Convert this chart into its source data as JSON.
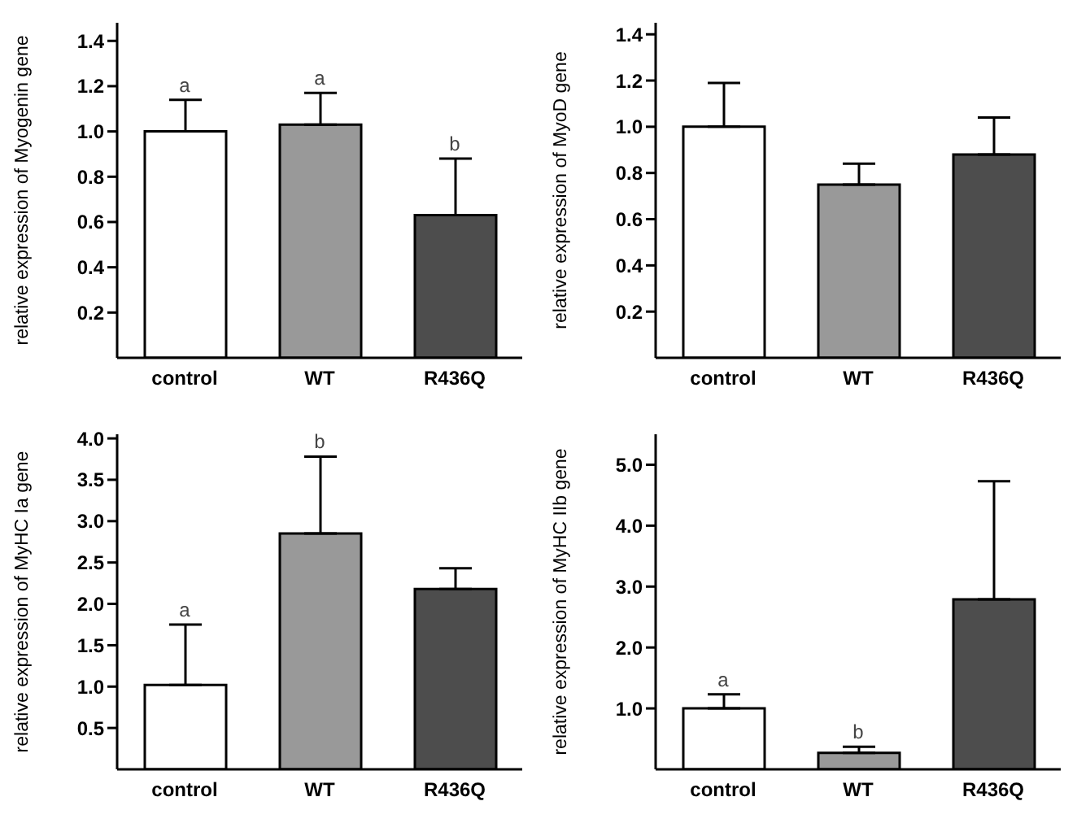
{
  "chart_data": [
    {
      "type": "bar",
      "ylabel": "relative expression of Myogenin gene",
      "categories": [
        "control",
        "WT",
        "R436Q"
      ],
      "values": [
        1.0,
        1.03,
        0.63
      ],
      "errors": [
        0.14,
        0.14,
        0.25
      ],
      "colors": [
        "#ffffff",
        "#999999",
        "#4d4d4d"
      ],
      "ylim": [
        0,
        1.48
      ],
      "yticks": [
        0.2,
        0.4,
        0.6,
        0.8,
        {
          "value": 1,
          "label": "1.0"
        },
        1.2,
        1.4
      ],
      "annotations": [
        {
          "text": "a",
          "x": "control",
          "y": 1.14
        },
        {
          "text": "a",
          "x": "WT",
          "y": 1.17
        },
        {
          "text": "b",
          "x": "R436Q",
          "y": 0.88
        }
      ],
      "grid": false,
      "legend": false
    },
    {
      "type": "bar",
      "ylabel": "relative expression of MyoD gene",
      "categories": [
        "control",
        "WT",
        "R436Q"
      ],
      "values": [
        1.0,
        0.75,
        0.88
      ],
      "errors": [
        0.19,
        0.09,
        0.16
      ],
      "colors": [
        "#ffffff",
        "#999999",
        "#4d4d4d"
      ],
      "ylim": [
        0,
        1.45
      ],
      "yticks": [
        0.2,
        0.4,
        0.6,
        0.8,
        {
          "value": 1,
          "label": "1.0"
        },
        1.2,
        1.4
      ],
      "grid": false,
      "legend": false
    },
    {
      "type": "bar",
      "ylabel": "relative expression of MyHC Ia gene",
      "categories": [
        "control",
        "WT",
        "R436Q"
      ],
      "values": [
        1.02,
        2.85,
        2.18
      ],
      "errors": [
        0.73,
        0.93,
        0.25
      ],
      "colors": [
        "#ffffff",
        "#999999",
        "#4d4d4d"
      ],
      "ylim": [
        0,
        4.05
      ],
      "yticks": [
        0.5,
        {
          "value": 1,
          "label": "1.0"
        },
        1.5,
        {
          "value": 2,
          "label": "2.0"
        },
        2.5,
        {
          "value": 3,
          "label": "3.0"
        },
        3.5,
        {
          "value": 4,
          "label": "4.0"
        }
      ],
      "annotations": [
        {
          "text": "a",
          "x": "control",
          "y": 1.75
        },
        {
          "text": "b",
          "x": "WT",
          "y": 3.78
        }
      ],
      "grid": false,
      "legend": false
    },
    {
      "type": "bar",
      "ylabel": "relative expression of MyHC IIb gene",
      "categories": [
        "control",
        "WT",
        "R436Q"
      ],
      "values": [
        1.0,
        0.27,
        2.79
      ],
      "errors": [
        0.23,
        0.1,
        1.94
      ],
      "colors": [
        "#ffffff",
        "#999999",
        "#4d4d4d"
      ],
      "ylim": [
        0,
        5.5
      ],
      "yticks": [
        {
          "value": 1,
          "label": "1.0"
        },
        {
          "value": 2,
          "label": "2.0"
        },
        {
          "value": 3,
          "label": "3.0"
        },
        {
          "value": 4,
          "label": "4.0"
        },
        {
          "value": 5,
          "label": "5.0"
        }
      ],
      "annotations": [
        {
          "text": "a",
          "x": "control",
          "y": 1.23
        },
        {
          "text": "b",
          "x": "WT",
          "y": 0.37
        }
      ],
      "grid": false,
      "legend": false
    }
  ]
}
